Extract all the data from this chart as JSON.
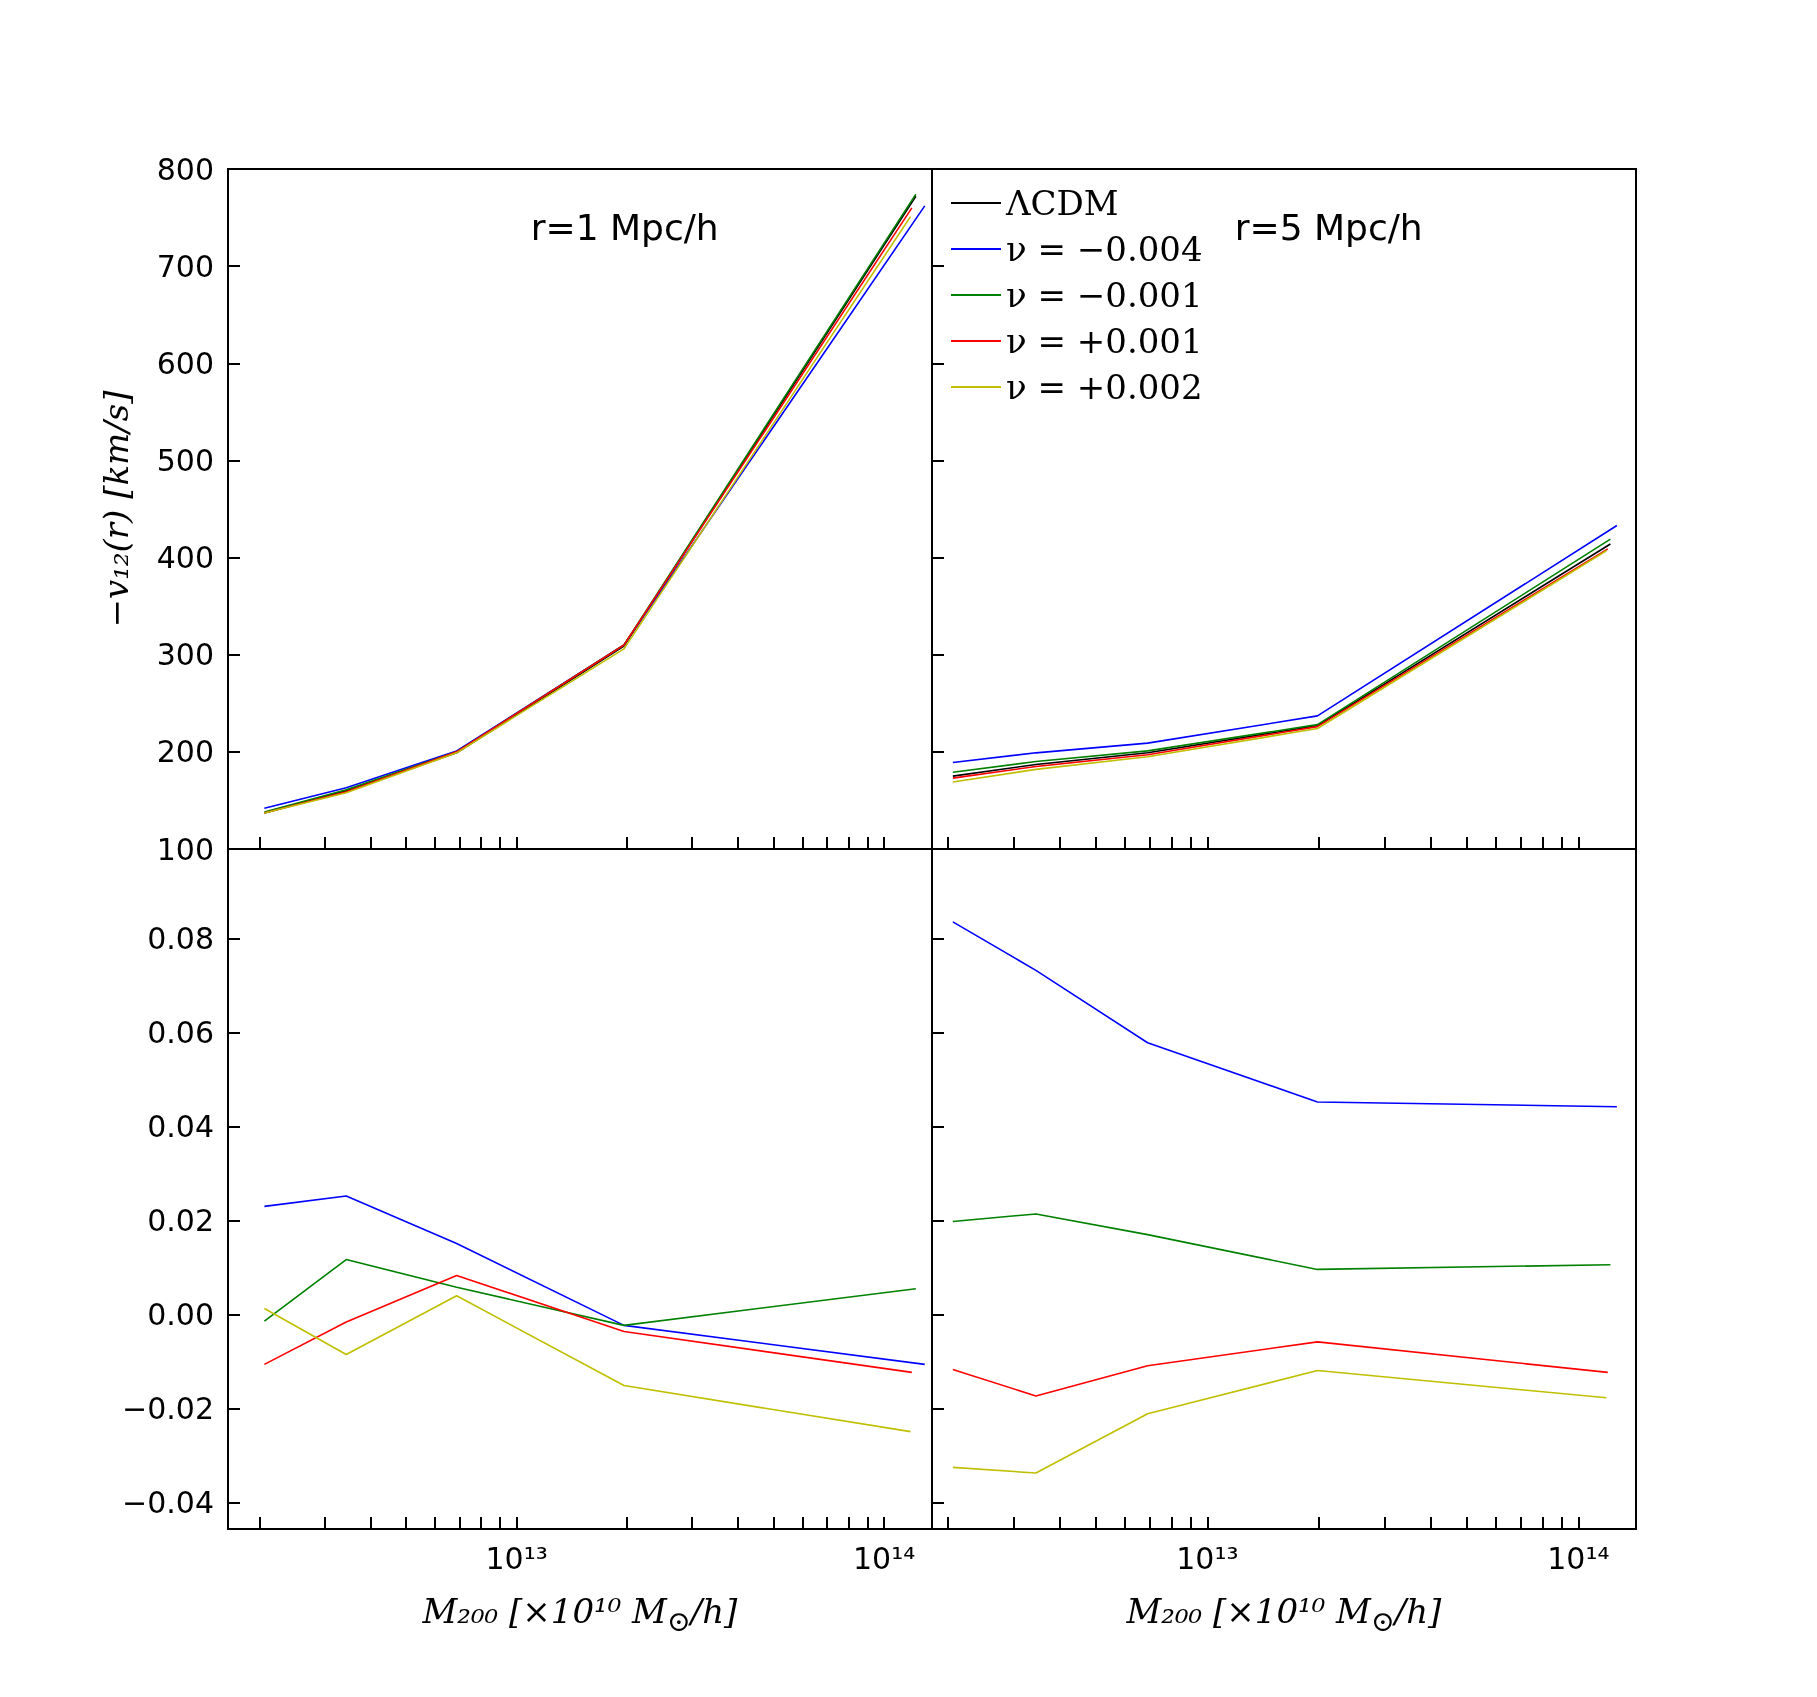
{
  "chart_data": [
    {
      "type": "line",
      "ylabel": "−v₁₂(r) [km/s]",
      "annotations": [
        "r=1 Mpc/h"
      ],
      "log": "x",
      "grid": false,
      "marker": "none",
      "line_style": "solid",
      "tick_labels": "y",
      "xlim": [
        1640000000000.0,
        135000000000000.0
      ],
      "ylim": [
        100,
        800
      ],
      "yticks": [
        100,
        200,
        300,
        400,
        500,
        600,
        700,
        800
      ],
      "xticks": [
        {
          "value": 2000000000000.0,
          "label": null
        },
        {
          "value": 3000000000000.0,
          "label": null
        },
        {
          "value": 4000000000000.0,
          "label": null
        },
        {
          "value": 5000000000000.0,
          "label": null
        },
        {
          "value": 6000000000000.0,
          "label": null
        },
        {
          "value": 7000000000000.0,
          "label": null
        },
        {
          "value": 8000000000000.0,
          "label": null
        },
        {
          "value": 9000000000000.0,
          "label": null
        },
        {
          "value": 10000000000000.0,
          "label": null
        },
        {
          "value": 20000000000000.0,
          "label": null
        },
        {
          "value": 30000000000000.0,
          "label": null
        },
        {
          "value": 40000000000000.0,
          "label": null
        },
        {
          "value": 50000000000000.0,
          "label": null
        },
        {
          "value": 60000000000000.0,
          "label": null
        },
        {
          "value": 70000000000000.0,
          "label": null
        },
        {
          "value": 80000000000000.0,
          "label": null
        },
        {
          "value": 90000000000000.0,
          "label": null
        },
        {
          "value": 100000000000000.0,
          "label": null
        }
      ],
      "series": [
        {
          "color": "#000000",
          "x": [
            2060000000000.0,
            3440000000000.0,
            6870000000000.0,
            19600000000000.0,
            122000000000000.0
          ],
          "values": [
            137,
            160,
            199,
            309,
            772
          ]
        },
        {
          "color": "#0000ff",
          "x": [
            2060000000000.0,
            3440000000000.0,
            6870000000000.0,
            19600000000000.0,
            129000000000000.0
          ],
          "values": [
            142,
            163,
            201,
            310,
            762
          ]
        },
        {
          "color": "#008000",
          "x": [
            2060000000000.0,
            3440000000000.0,
            6870000000000.0,
            19600000000000.0,
            122000000000000.0
          ],
          "values": [
            138,
            161,
            200,
            310,
            774
          ]
        },
        {
          "color": "#ff0000",
          "x": [
            2060000000000.0,
            3440000000000.0,
            6870000000000.0,
            19600000000000.0,
            119000000000000.0
          ],
          "values": [
            137,
            159,
            200,
            310,
            760
          ]
        },
        {
          "color": "#bfbf00",
          "x": [
            2060000000000.0,
            3440000000000.0,
            6870000000000.0,
            19600000000000.0,
            118000000000000.0
          ],
          "values": [
            137,
            158,
            199,
            306,
            751
          ]
        }
      ]
    },
    {
      "type": "line",
      "annotations": [
        "r=5 Mpc/h"
      ],
      "log": "x",
      "grid": false,
      "marker": "none",
      "line_style": "solid",
      "tick_labels": false,
      "legend": "top left",
      "xlim": [
        1810000000000.0,
        143000000000000.0
      ],
      "ylim": [
        100,
        800
      ],
      "yticks": [
        100,
        200,
        300,
        400,
        500,
        600,
        700,
        800
      ],
      "xticks": [
        {
          "value": 2000000000000.0,
          "label": null
        },
        {
          "value": 3000000000000.0,
          "label": null
        },
        {
          "value": 4000000000000.0,
          "label": null
        },
        {
          "value": 5000000000000.0,
          "label": null
        },
        {
          "value": 6000000000000.0,
          "label": null
        },
        {
          "value": 7000000000000.0,
          "label": null
        },
        {
          "value": 8000000000000.0,
          "label": null
        },
        {
          "value": 9000000000000.0,
          "label": null
        },
        {
          "value": 10000000000000.0,
          "label": null
        },
        {
          "value": 20000000000000.0,
          "label": null
        },
        {
          "value": 30000000000000.0,
          "label": null
        },
        {
          "value": 40000000000000.0,
          "label": null
        },
        {
          "value": 50000000000000.0,
          "label": null
        },
        {
          "value": 60000000000000.0,
          "label": null
        },
        {
          "value": 70000000000000.0,
          "label": null
        },
        {
          "value": 80000000000000.0,
          "label": null
        },
        {
          "value": 90000000000000.0,
          "label": null
        },
        {
          "value": 100000000000000.0,
          "label": null
        }
      ],
      "series": [
        {
          "name": "ΛCDM",
          "color": "#000000",
          "x": [
            2060000000000.0,
            3450000000000.0,
            6900000000000.0,
            19800000000000.0,
            122000000000000.0
          ],
          "values": [
            175,
            187,
            199,
            227,
            414
          ]
        },
        {
          "name": "ν = −0.004",
          "color": "#0000ff",
          "x": [
            2060000000000.0,
            3450000000000.0,
            6900000000000.0,
            19800000000000.0,
            127000000000000.0
          ],
          "values": [
            189,
            199,
            209,
            237,
            433
          ]
        },
        {
          "name": "ν = −0.001",
          "color": "#008000",
          "x": [
            2060000000000.0,
            3450000000000.0,
            6900000000000.0,
            19800000000000.0,
            122000000000000.0
          ],
          "values": [
            179,
            190,
            201,
            228,
            419
          ]
        },
        {
          "name": "ν = +0.001",
          "color": "#ff0000",
          "x": [
            2060000000000.0,
            3450000000000.0,
            6900000000000.0,
            19800000000000.0,
            120000000000000.0
          ],
          "values": [
            173,
            185,
            197,
            226,
            409
          ]
        },
        {
          "name": "ν = +0.002",
          "color": "#bfbf00",
          "x": [
            2060000000000.0,
            3450000000000.0,
            6900000000000.0,
            19800000000000.0,
            119000000000000.0
          ],
          "values": [
            169,
            182,
            195,
            224,
            407
          ]
        }
      ]
    },
    {
      "type": "line",
      "xlabel": "M₂₀₀ [×10¹⁰ M$_{⊙}$/h]",
      "log": "x",
      "grid": false,
      "marker": "none",
      "line_style": "solid",
      "xlim": [
        1640000000000.0,
        135000000000000.0
      ],
      "ylim": [
        -0.0456,
        0.099
      ],
      "yticks": [
        {
          "value": -0.04,
          "label": "−0.04"
        },
        {
          "value": -0.02,
          "label": "−0.02"
        },
        {
          "value": 0,
          "label": "0.00"
        },
        0.02,
        0.04,
        0.06,
        0.08
      ],
      "xticks": [
        {
          "value": 2000000000000.0,
          "label": null
        },
        {
          "value": 3000000000000.0,
          "label": null
        },
        {
          "value": 4000000000000.0,
          "label": null
        },
        {
          "value": 5000000000000.0,
          "label": null
        },
        {
          "value": 6000000000000.0,
          "label": null
        },
        {
          "value": 7000000000000.0,
          "label": null
        },
        {
          "value": 8000000000000.0,
          "label": null
        },
        {
          "value": 9000000000000.0,
          "label": null
        },
        {
          "value": 10000000000000.0,
          "label": "10¹³"
        },
        {
          "value": 20000000000000.0,
          "label": null
        },
        {
          "value": 30000000000000.0,
          "label": null
        },
        {
          "value": 40000000000000.0,
          "label": null
        },
        {
          "value": 50000000000000.0,
          "label": null
        },
        {
          "value": 60000000000000.0,
          "label": null
        },
        {
          "value": 70000000000000.0,
          "label": null
        },
        {
          "value": 80000000000000.0,
          "label": null
        },
        {
          "value": 90000000000000.0,
          "label": null
        },
        {
          "value": 100000000000000.0,
          "label": "10¹⁴"
        }
      ],
      "series": [
        {
          "color": "#0000ff",
          "x": [
            2060000000000.0,
            3440000000000.0,
            6870000000000.0,
            19600000000000.0,
            129000000000000.0
          ],
          "values": [
            0.023,
            0.0252,
            0.0151,
            -0.0023,
            -0.0106
          ]
        },
        {
          "color": "#008000",
          "x": [
            2060000000000.0,
            3440000000000.0,
            6870000000000.0,
            19600000000000.0,
            122000000000000.0
          ],
          "values": [
            -0.0014,
            0.0117,
            0.0058,
            -0.0023,
            0.0055
          ]
        },
        {
          "color": "#ff0000",
          "x": [
            2060000000000.0,
            3440000000000.0,
            6870000000000.0,
            19600000000000.0,
            119000000000000.0
          ],
          "values": [
            -0.0106,
            -0.0016,
            0.0083,
            -0.0036,
            -0.0123
          ]
        },
        {
          "color": "#bfbf00",
          "x": [
            2060000000000.0,
            3440000000000.0,
            6870000000000.0,
            19600000000000.0,
            118000000000000.0
          ],
          "values": [
            0.0013,
            -0.0085,
            0.004,
            -0.0151,
            -0.0249
          ]
        }
      ]
    },
    {
      "type": "line",
      "xlabel": "M₂₀₀ [×10¹⁰ M$_{⊙}$/h]",
      "log": "x",
      "grid": false,
      "marker": "none",
      "line_style": "solid",
      "tick_labels": "x",
      "xlim": [
        1810000000000.0,
        143000000000000.0
      ],
      "ylim": [
        -0.0456,
        0.099
      ],
      "yticks": [
        {
          "value": -0.04,
          "label": null
        },
        {
          "value": -0.02,
          "label": null
        },
        {
          "value": 0,
          "label": null
        },
        {
          "value": 0.02,
          "label": null
        },
        {
          "value": 0.04,
          "label": null
        },
        {
          "value": 0.06,
          "label": null
        },
        {
          "value": 0.08,
          "label": null
        }
      ],
      "xticks": [
        {
          "value": 2000000000000.0,
          "label": null
        },
        {
          "value": 3000000000000.0,
          "label": null
        },
        {
          "value": 4000000000000.0,
          "label": null
        },
        {
          "value": 5000000000000.0,
          "label": null
        },
        {
          "value": 6000000000000.0,
          "label": null
        },
        {
          "value": 7000000000000.0,
          "label": null
        },
        {
          "value": 8000000000000.0,
          "label": null
        },
        {
          "value": 9000000000000.0,
          "label": null
        },
        {
          "value": 10000000000000.0,
          "label": "10¹³"
        },
        {
          "value": 20000000000000.0,
          "label": null
        },
        {
          "value": 30000000000000.0,
          "label": null
        },
        {
          "value": 40000000000000.0,
          "label": null
        },
        {
          "value": 50000000000000.0,
          "label": null
        },
        {
          "value": 60000000000000.0,
          "label": null
        },
        {
          "value": 70000000000000.0,
          "label": null
        },
        {
          "value": 80000000000000.0,
          "label": null
        },
        {
          "value": 90000000000000.0,
          "label": null
        },
        {
          "value": 100000000000000.0,
          "label": "10¹⁴"
        }
      ],
      "series": [
        {
          "color": "#0000ff",
          "x": [
            2060000000000.0,
            3450000000000.0,
            6900000000000.0,
            19800000000000.0,
            127000000000000.0
          ],
          "values": [
            0.0835,
            0.0732,
            0.0578,
            0.0452,
            0.0442
          ]
        },
        {
          "color": "#008000",
          "x": [
            2060000000000.0,
            3450000000000.0,
            6900000000000.0,
            19800000000000.0,
            122000000000000.0
          ],
          "values": [
            0.0198,
            0.0214,
            0.017,
            0.0096,
            0.0106
          ]
        },
        {
          "color": "#ff0000",
          "x": [
            2060000000000.0,
            3450000000000.0,
            6900000000000.0,
            19800000000000.0,
            120000000000000.0
          ],
          "values": [
            -0.0117,
            -0.0173,
            -0.0109,
            -0.0058,
            -0.0123
          ]
        },
        {
          "color": "#bfbf00",
          "x": [
            2060000000000.0,
            3450000000000.0,
            6900000000000.0,
            19800000000000.0,
            119000000000000.0
          ],
          "values": [
            -0.0325,
            -0.0337,
            -0.0211,
            -0.0119,
            -0.0177
          ]
        }
      ]
    }
  ]
}
